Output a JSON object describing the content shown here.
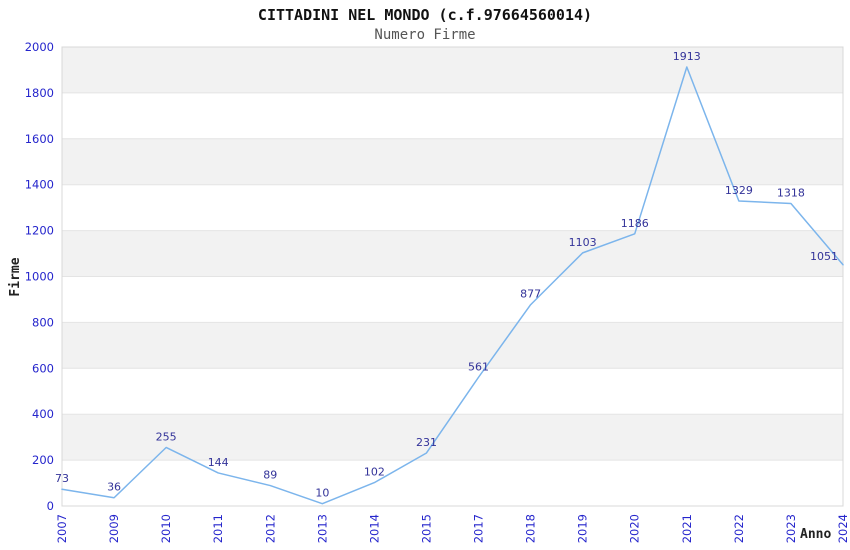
{
  "chart_data": {
    "type": "line",
    "title": "CITTADINI NEL MONDO (c.f.97664560014)",
    "subtitle": "Numero Firme",
    "xlabel": "Anno",
    "ylabel": "Firme",
    "categories": [
      "2007",
      "2009",
      "2010",
      "2011",
      "2012",
      "2013",
      "2014",
      "2015",
      "2017",
      "2018",
      "2019",
      "2020",
      "2021",
      "2022",
      "2023",
      "2024"
    ],
    "values": [
      73,
      36,
      255,
      144,
      89,
      10,
      102,
      231,
      561,
      877,
      1103,
      1186,
      1913,
      1329,
      1318,
      1051
    ],
    "ylim": [
      0,
      2000
    ],
    "ytick_interval": 200,
    "ytick_labels": [
      "0",
      "200",
      "400",
      "600",
      "800",
      "1000",
      "1200",
      "1400",
      "1600",
      "1800",
      "2000"
    ],
    "grid": true,
    "legend": "none",
    "colors": {
      "line": "#7cb5ec",
      "data_label": "#333399",
      "tick_label": "#2525cc",
      "band": "#f2f2f2",
      "grid_line": "#e4e4e4",
      "plot_border": "#d8d8d8",
      "title": "#111111",
      "subtitle": "#555555",
      "axis_title": "#222222"
    }
  }
}
